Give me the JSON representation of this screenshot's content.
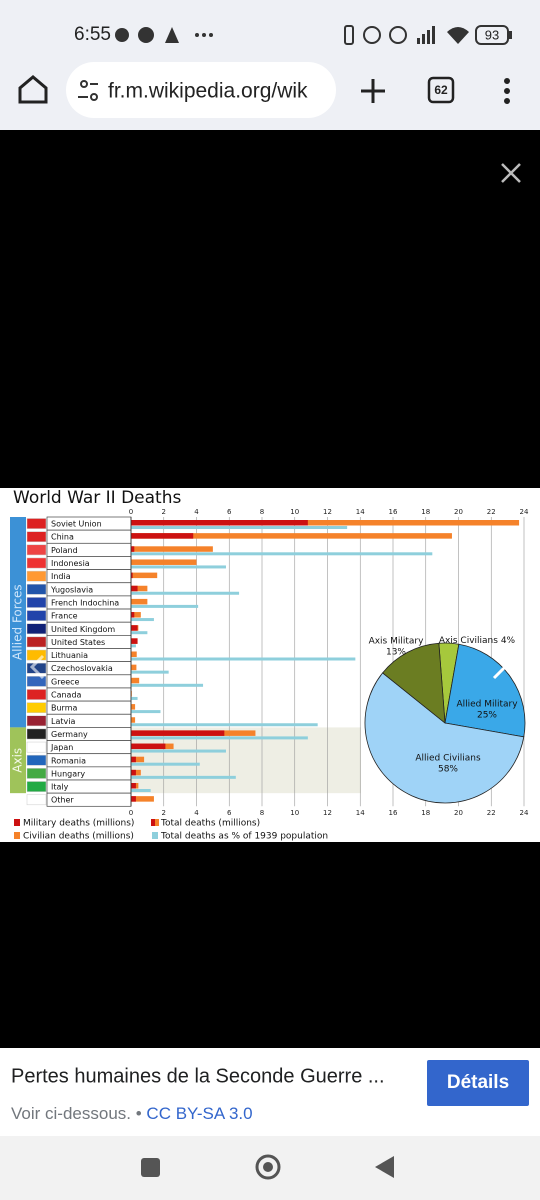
{
  "status": {
    "time": "6:55",
    "battery": "93"
  },
  "browser": {
    "url": "fr.m.wikipedia.org/wik",
    "tabs": "62"
  },
  "chart_data": [
    {
      "type": "bar",
      "orientation": "horizontal",
      "title": "World War II Deaths",
      "categories": [
        "Soviet Union",
        "China",
        "Poland",
        "Indonesia",
        "India",
        "Yugoslavia",
        "French Indochina",
        "France",
        "United Kingdom",
        "United States",
        "Lithuania",
        "Czechoslovakia",
        "Greece",
        "Canada",
        "Burma",
        "Latvia",
        "Germany",
        "Japan",
        "Romania",
        "Hungary",
        "Italy",
        "Other"
      ],
      "groups": [
        {
          "name": "Allied Forces",
          "count": 16,
          "color": "#3c91d6"
        },
        {
          "name": "Axis",
          "count": 5,
          "color": "#9fc35a"
        }
      ],
      "series": [
        {
          "name": "Military deaths (millions)",
          "color": "#cc1111",
          "values": [
            10.8,
            3.8,
            0.2,
            0,
            0.1,
            0.4,
            0,
            0.2,
            0.4,
            0.4,
            0,
            0,
            0,
            0,
            0,
            0,
            5.7,
            2.1,
            0.3,
            0.3,
            0.3,
            0.3
          ]
        },
        {
          "name": "Total deaths (millions)",
          "color": "#f5822a",
          "values": [
            23.7,
            19.6,
            5.0,
            4.0,
            1.6,
            1.0,
            1.0,
            0.6,
            0.45,
            0.4,
            0.35,
            0.33,
            0.5,
            0.05,
            0.25,
            0.25,
            7.6,
            2.6,
            0.8,
            0.6,
            0.45,
            1.4
          ]
        },
        {
          "name": "Total deaths as % of 1939 population",
          "color": "#8ecfdc",
          "values": [
            13.2,
            null,
            18.4,
            5.8,
            null,
            6.6,
            4.1,
            1.4,
            1.0,
            0.3,
            13.7,
            2.3,
            4.4,
            0.4,
            1.8,
            11.4,
            10.8,
            5.8,
            4.2,
            6.4,
            1.2,
            null
          ]
        }
      ],
      "legend_extra": {
        "label": "Civilian deaths (millions)",
        "color": "#f5822a"
      },
      "xlim": [
        0,
        24
      ],
      "xticks": [
        0,
        2,
        4,
        6,
        8,
        10,
        12,
        14,
        16,
        18,
        20,
        22,
        24
      ],
      "grid": true
    },
    {
      "type": "pie",
      "categories": [
        "Axis Civilians",
        "Allied Military",
        "Allied Civilians",
        "Axis Military"
      ],
      "values": [
        4,
        25,
        58,
        13
      ],
      "value_labels": [
        "4%",
        "25%",
        "58%",
        "13%"
      ],
      "colors": [
        "#a6c83c",
        "#3aa8e8",
        "#9fd3f7",
        "#6b7d22"
      ]
    }
  ],
  "caption": {
    "title": "Pertes humaines de la Seconde Guerre ...",
    "button": "Détails",
    "subtitle": "Voir ci-dessous.",
    "separator": "•",
    "license": "CC BY-SA 3.0"
  }
}
